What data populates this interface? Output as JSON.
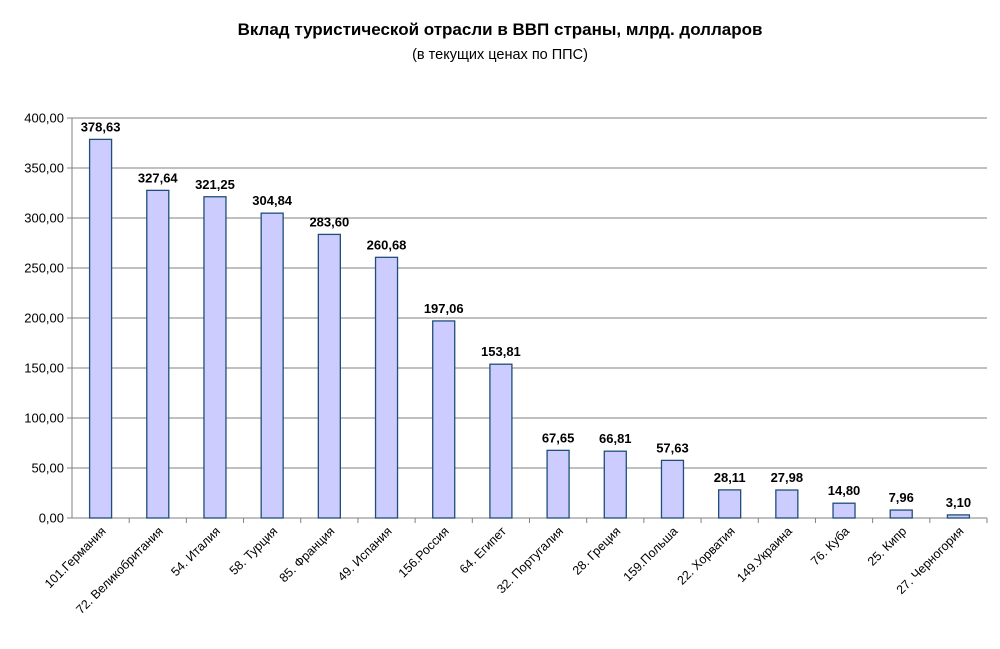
{
  "chart_data": {
    "type": "bar",
    "title": "Вклад туристической отрасли в ВВП страны, млрд. долларов",
    "subtitle": "(в текущих ценах по ППС)",
    "categories": [
      "101.Германия",
      "72. Великобритания",
      "54. Италия",
      "58. Турция",
      "85. Франция",
      "49. Испания",
      "156.Россия",
      "64. Египет",
      "32. Португалия",
      "28. Греция",
      "159.Польша",
      "22. Хорватия",
      "149.Украина",
      "76. Куба",
      "25. Кипр",
      "27. Черногория"
    ],
    "values": [
      378.63,
      327.64,
      321.25,
      304.84,
      283.6,
      260.68,
      197.06,
      153.81,
      67.65,
      66.81,
      57.63,
      28.11,
      27.98,
      14.8,
      7.96,
      3.1
    ],
    "value_labels": [
      "378,63",
      "327,64",
      "321,25",
      "304,84",
      "283,60",
      "260,68",
      "197,06",
      "153,81",
      "67,65",
      "66,81",
      "57,63",
      "28,11",
      "27,98",
      "14,80",
      "7,96",
      "3,10"
    ],
    "y_ticks": [
      0,
      50,
      100,
      150,
      200,
      250,
      300,
      350,
      400
    ],
    "y_tick_labels": [
      "0,00",
      "50,00",
      "100,00",
      "150,00",
      "200,00",
      "250,00",
      "300,00",
      "350,00",
      "400,00"
    ],
    "ylim": [
      0,
      400
    ],
    "grid": true,
    "legend": "none",
    "colors": {
      "bar_fill": "#ccccff",
      "bar_stroke": "#1f4e79",
      "grid": "#808080",
      "axis": "#808080"
    }
  }
}
